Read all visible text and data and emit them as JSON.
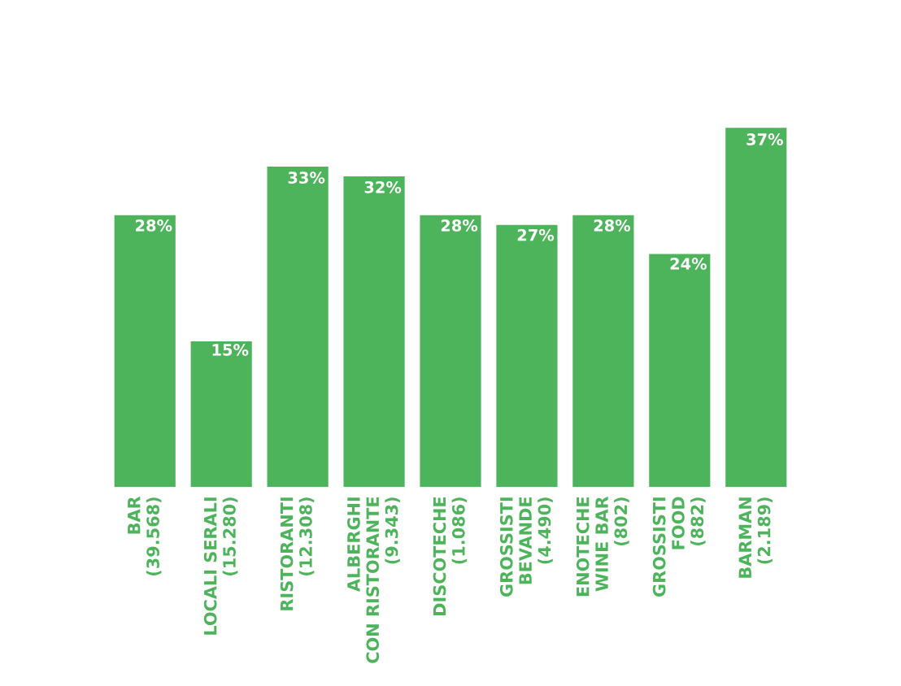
{
  "chart_data": {
    "type": "bar",
    "categories": [
      "BAR\n(39.568)",
      "LOCALI SERALI\n(15.280)",
      "RISTORANTI\n(12.308)",
      "ALBERGHI\nCON RISTORANTE\n(9.343)",
      "DISCOTECHE\n(1.086)",
      "GROSSISTI\nBEVANDE\n(4.490)",
      "ENOTECHE\nWINE BAR\n(802)",
      "GROSSISTI\nFOOD\n(882)",
      "BARMAN\n(2.189)"
    ],
    "values": [
      28,
      15,
      33,
      32,
      28,
      27,
      28,
      24,
      37
    ],
    "value_labels": [
      "28%",
      "15%",
      "33%",
      "32%",
      "28%",
      "27%",
      "28%",
      "24%",
      "37%"
    ],
    "color": "#4db45b",
    "grid": false,
    "legend": false
  }
}
